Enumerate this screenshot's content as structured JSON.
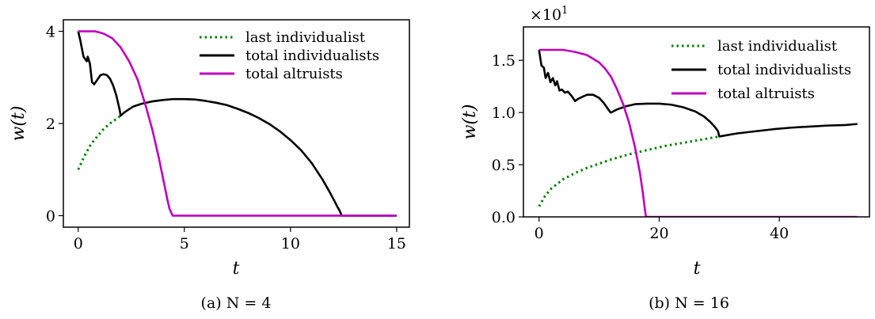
{
  "chart_data": [
    {
      "type": "line",
      "caption": "(a) N = 4",
      "xlabel": "t",
      "ylabel": "w(t)",
      "xlim": [
        -0.7,
        15.6
      ],
      "ylim": [
        -0.25,
        4.25
      ],
      "xticks": [
        0,
        5,
        10,
        15
      ],
      "xtick_labels": [
        "0",
        "5",
        "10",
        "15"
      ],
      "yticks": [
        0,
        2,
        4
      ],
      "ytick_labels": [
        "0",
        "2",
        "4"
      ],
      "legend_position": "upper-right",
      "series": [
        {
          "name": "last individualist",
          "style": "dotted",
          "color": "#008000",
          "x": [
            0,
            0.3,
            0.6,
            0.9,
            1.2,
            1.5,
            1.8,
            2.0
          ],
          "y": [
            1.0,
            1.3,
            1.55,
            1.72,
            1.88,
            2.0,
            2.1,
            2.17
          ]
        },
        {
          "name": "total individualists",
          "style": "solid",
          "color": "#000000",
          "x": [
            0,
            0.1,
            0.25,
            0.4,
            0.45,
            0.55,
            0.65,
            0.75,
            0.9,
            1.05,
            1.2,
            1.35,
            1.5,
            1.65,
            1.8,
            1.95,
            2.0,
            2.2,
            2.6,
            3.0,
            3.5,
            4.0,
            4.5,
            5.0,
            5.5,
            6.0,
            6.5,
            7.0,
            7.5,
            8.0,
            8.5,
            9.0,
            9.5,
            10.0,
            10.5,
            11.0,
            11.5,
            11.8,
            12.0,
            12.2,
            12.3,
            12.38,
            12.4,
            15.0
          ],
          "y": [
            4.0,
            3.8,
            3.45,
            3.35,
            3.45,
            3.3,
            2.9,
            2.85,
            2.95,
            3.05,
            3.07,
            3.05,
            2.97,
            2.82,
            2.6,
            2.3,
            2.17,
            2.25,
            2.37,
            2.43,
            2.48,
            2.51,
            2.53,
            2.53,
            2.52,
            2.49,
            2.45,
            2.4,
            2.32,
            2.23,
            2.12,
            1.99,
            1.83,
            1.64,
            1.42,
            1.14,
            0.79,
            0.55,
            0.38,
            0.2,
            0.12,
            0.04,
            0.0,
            0.0
          ]
        },
        {
          "name": "total altruists",
          "style": "solid",
          "color": "#c000c0",
          "x": [
            0,
            0.3,
            0.8,
            1.2,
            1.6,
            2.0,
            2.4,
            2.8,
            3.2,
            3.5,
            3.8,
            4.0,
            4.2,
            4.3,
            4.4,
            4.45,
            15.0
          ],
          "y": [
            4.0,
            4.0,
            4.0,
            3.95,
            3.85,
            3.65,
            3.35,
            2.95,
            2.35,
            1.85,
            1.25,
            0.8,
            0.35,
            0.15,
            0.05,
            0.0,
            0.0
          ]
        }
      ]
    },
    {
      "type": "line",
      "caption": "(b) N = 16",
      "xlabel": "t",
      "ylabel": "w(t)",
      "y_multiplier": "×10",
      "y_multiplier_exponent": "1",
      "xlim": [
        -2.6,
        55
      ],
      "ylim": [
        0,
        1.82
      ],
      "xticks": [
        0,
        20,
        40
      ],
      "xtick_labels": [
        "0",
        "20",
        "40"
      ],
      "yticks": [
        0,
        0.5,
        1.0,
        1.5
      ],
      "ytick_labels": [
        "0.0",
        "0.5",
        "1.0",
        "1.5"
      ],
      "legend_position": "upper-right",
      "series": [
        {
          "name": "last individualist",
          "style": "dotted",
          "color": "#008000",
          "x": [
            0,
            1,
            2,
            4,
            6,
            8,
            10,
            12,
            15,
            18,
            21,
            24,
            27,
            30
          ],
          "y": [
            0.1,
            0.2,
            0.27,
            0.36,
            0.42,
            0.47,
            0.51,
            0.55,
            0.6,
            0.64,
            0.68,
            0.71,
            0.74,
            0.77
          ]
        },
        {
          "name": "total individualists",
          "style": "solid",
          "color": "#000000",
          "x": [
            0,
            0.4,
            0.8,
            1.1,
            1.5,
            1.9,
            2.3,
            2.7,
            3.0,
            3.4,
            3.8,
            4.3,
            4.8,
            5.4,
            6.0,
            6.5,
            7.2,
            8.0,
            9.0,
            10.0,
            10.8,
            11.4,
            11.9,
            12.0,
            13.0,
            14.5,
            16.0,
            18.0,
            20.0,
            22.0,
            24.0,
            26.0,
            27.5,
            28.5,
            29.3,
            29.8,
            30.0,
            33.0,
            36.0,
            39.0,
            42.0,
            45.0,
            48.0,
            51.0,
            53.0
          ],
          "y": [
            1.6,
            1.45,
            1.43,
            1.33,
            1.38,
            1.29,
            1.33,
            1.26,
            1.3,
            1.21,
            1.22,
            1.19,
            1.2,
            1.16,
            1.11,
            1.13,
            1.15,
            1.17,
            1.17,
            1.14,
            1.09,
            1.04,
            1.0,
            1.0,
            1.03,
            1.06,
            1.08,
            1.085,
            1.085,
            1.075,
            1.05,
            1.01,
            0.96,
            0.91,
            0.86,
            0.82,
            0.77,
            0.8,
            0.82,
            0.84,
            0.855,
            0.865,
            0.875,
            0.88,
            0.89
          ]
        },
        {
          "name": "total altruists",
          "style": "solid",
          "color": "#c000c0",
          "x": [
            0,
            2,
            4,
            6,
            8,
            10,
            11,
            12,
            13,
            14,
            15,
            16,
            16.8,
            17.3,
            17.6,
            17.8,
            53.0
          ],
          "y": [
            1.6,
            1.6,
            1.6,
            1.58,
            1.55,
            1.48,
            1.42,
            1.34,
            1.22,
            1.08,
            0.9,
            0.66,
            0.42,
            0.22,
            0.08,
            0.0,
            0.0
          ]
        }
      ]
    }
  ]
}
